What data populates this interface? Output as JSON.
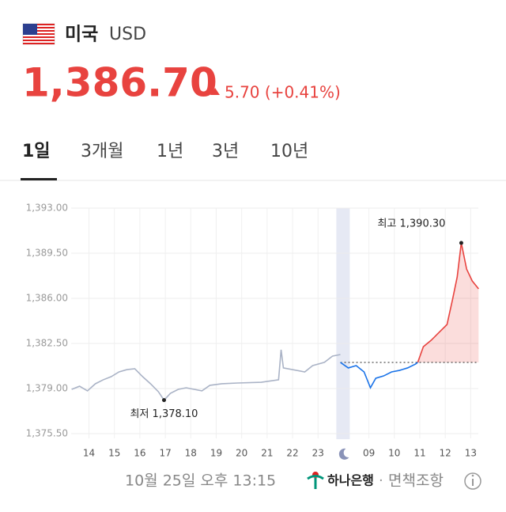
{
  "header": {
    "country": "미국",
    "currency": "USD",
    "price": "1,386.70",
    "change": "5.70 (+0.41%)"
  },
  "tabs": [
    "1일",
    "3개월",
    "1년",
    "3년",
    "10년"
  ],
  "chart_data": {
    "type": "line",
    "xlim": [
      -0.7,
      15.3
    ],
    "xticks": [
      {
        "value": 0,
        "label": "14"
      },
      {
        "value": 1,
        "label": "15"
      },
      {
        "value": 2,
        "label": "16"
      },
      {
        "value": 3,
        "label": "17"
      },
      {
        "value": 4,
        "label": "18"
      },
      {
        "value": 5,
        "label": "19"
      },
      {
        "value": 6,
        "label": "20"
      },
      {
        "value": 7,
        "label": "21"
      },
      {
        "value": 8,
        "label": "22"
      },
      {
        "value": 9,
        "label": "23"
      },
      {
        "value": 11,
        "label": "09"
      },
      {
        "value": 12,
        "label": "10"
      },
      {
        "value": 13,
        "label": "11"
      },
      {
        "value": 14,
        "label": "12"
      },
      {
        "value": 15,
        "label": "13"
      }
    ],
    "ylim": [
      1375.5,
      1393.0
    ],
    "yticks": [
      {
        "value": 1393.0,
        "label": "1,393.00"
      },
      {
        "value": 1389.5,
        "label": "1,389.50"
      },
      {
        "value": 1386.0,
        "label": "1,386.00"
      },
      {
        "value": 1382.5,
        "label": "1,382.50"
      },
      {
        "value": 1379.0,
        "label": "1,379.00"
      },
      {
        "value": 1375.5,
        "label": "1,375.50"
      }
    ],
    "grid": true,
    "baseline": 1381.03,
    "series": [
      {
        "color": "#aab3c6",
        "x": [
          -0.68,
          -0.37,
          -0.06,
          0.25,
          0.56,
          0.87,
          1.18,
          1.49,
          1.8,
          2.11,
          2.42,
          2.73,
          2.95,
          3.2,
          3.51,
          3.82,
          4.13,
          4.44,
          4.75,
          5.22,
          5.84,
          6.77,
          7.45,
          7.55,
          7.64,
          8.48,
          8.79,
          9.25,
          9.57,
          9.88
        ],
        "values": [
          1378.94,
          1379.18,
          1378.82,
          1379.37,
          1379.68,
          1379.92,
          1380.29,
          1380.47,
          1380.54,
          1379.92,
          1379.37,
          1378.75,
          1378.1,
          1378.63,
          1378.94,
          1379.06,
          1378.94,
          1378.82,
          1379.25,
          1379.37,
          1379.43,
          1379.49,
          1379.68,
          1382.01,
          1380.6,
          1380.29,
          1380.78,
          1381.03,
          1381.52,
          1381.64
        ]
      },
      {
        "color": "#1a73e8",
        "x": [
          9.88,
          10.19,
          10.5,
          10.81,
          11.06,
          11.27,
          11.58,
          11.89,
          12.2,
          12.52,
          12.83,
          12.92
        ],
        "values": [
          1381.03,
          1380.6,
          1380.78,
          1380.29,
          1379.06,
          1379.8,
          1379.98,
          1380.29,
          1380.41,
          1380.6,
          1380.9,
          1381.03
        ]
      },
      {
        "color": "#e8433f",
        "x": [
          12.92,
          13.14,
          13.45,
          13.76,
          14.07,
          14.29,
          14.47,
          14.63,
          14.84,
          15.06,
          15.31
        ],
        "values": [
          1381.03,
          1382.25,
          1382.75,
          1383.36,
          1383.97,
          1385.94,
          1387.66,
          1390.3,
          1388.27,
          1387.35,
          1386.74
        ]
      }
    ],
    "annotations": [
      {
        "text": "최고 1,390.30",
        "x": 14.63,
        "y": 1390.3
      },
      {
        "text": "최저 1,378.10",
        "x": 2.95,
        "y": 1378.1
      }
    ]
  },
  "footer": {
    "timestamp": "10월 25일 오후 13:15",
    "bank": "하나은행",
    "separator": "·",
    "disclaimer": "면책조항"
  }
}
